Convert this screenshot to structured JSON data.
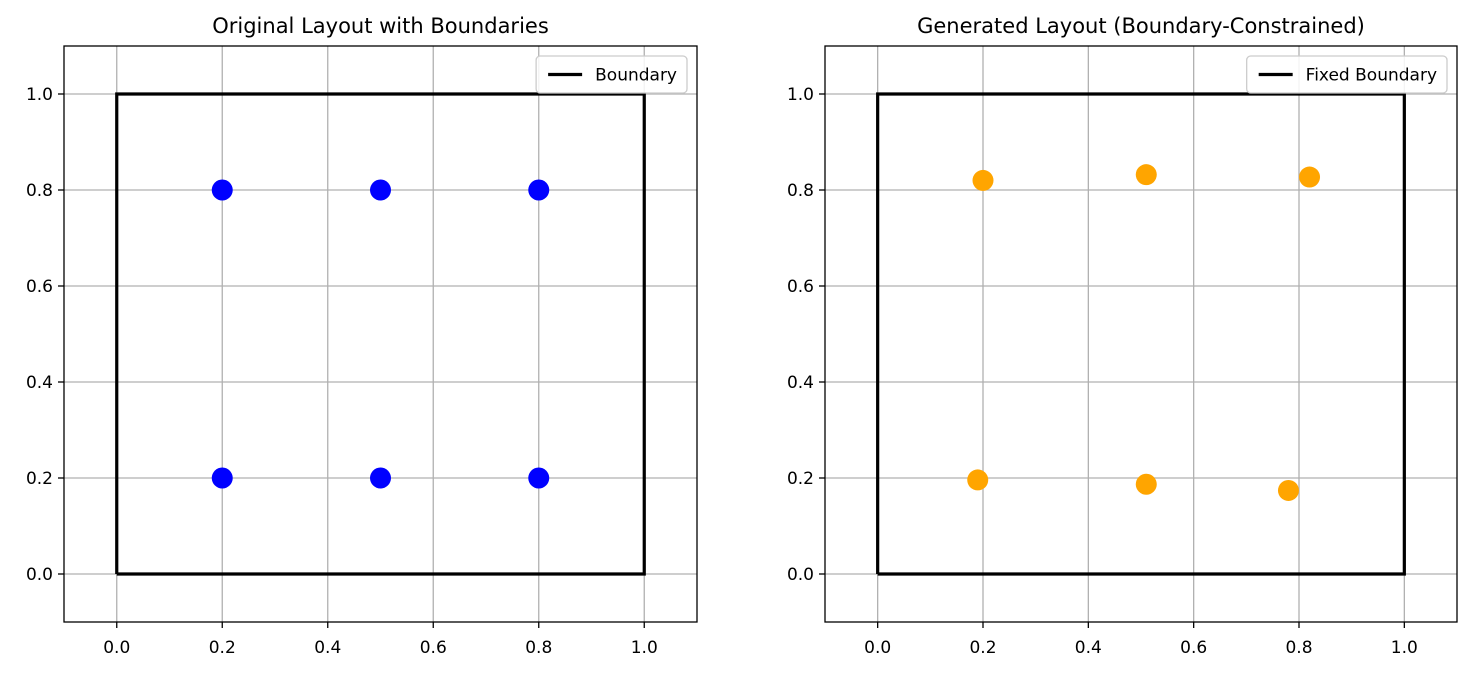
{
  "colors": {
    "boundary": "#000000",
    "grid": "#b0b0b0",
    "legend_border": "#cccccc"
  },
  "chart_data": [
    {
      "type": "scatter",
      "title": "Original Layout with Boundaries",
      "xlim": [
        -0.1,
        1.1
      ],
      "ylim": [
        -0.1,
        1.1
      ],
      "xticks": [
        "0.0",
        "0.2",
        "0.4",
        "0.6",
        "0.8",
        "1.0"
      ],
      "yticks": [
        "0.0",
        "0.2",
        "0.4",
        "0.6",
        "0.8",
        "1.0"
      ],
      "grid": true,
      "legend_position": "top-right",
      "boundary": {
        "name": "Boundary",
        "x": [
          0,
          1,
          1,
          0,
          0
        ],
        "y": [
          0,
          0,
          1,
          1,
          0
        ]
      },
      "series": [
        {
          "color": "#0000ff",
          "points": [
            [
              0.2,
              0.8
            ],
            [
              0.5,
              0.8
            ],
            [
              0.8,
              0.8
            ],
            [
              0.2,
              0.2
            ],
            [
              0.5,
              0.2
            ],
            [
              0.8,
              0.2
            ]
          ]
        }
      ]
    },
    {
      "type": "scatter",
      "title": "Generated Layout (Boundary-Constrained)",
      "xlim": [
        -0.1,
        1.1
      ],
      "ylim": [
        -0.1,
        1.1
      ],
      "xticks": [
        "0.0",
        "0.2",
        "0.4",
        "0.6",
        "0.8",
        "1.0"
      ],
      "yticks": [
        "0.0",
        "0.2",
        "0.4",
        "0.6",
        "0.8",
        "1.0"
      ],
      "grid": true,
      "legend_position": "top-right",
      "boundary": {
        "name": "Fixed Boundary",
        "x": [
          0,
          1,
          1,
          0,
          0
        ],
        "y": [
          0,
          0,
          1,
          1,
          0
        ]
      },
      "series": [
        {
          "color": "#ffa500",
          "points": [
            [
              0.2,
              0.82
            ],
            [
              0.51,
              0.832
            ],
            [
              0.82,
              0.827
            ],
            [
              0.19,
              0.196
            ],
            [
              0.51,
              0.187
            ],
            [
              0.78,
              0.174
            ]
          ]
        }
      ]
    }
  ]
}
